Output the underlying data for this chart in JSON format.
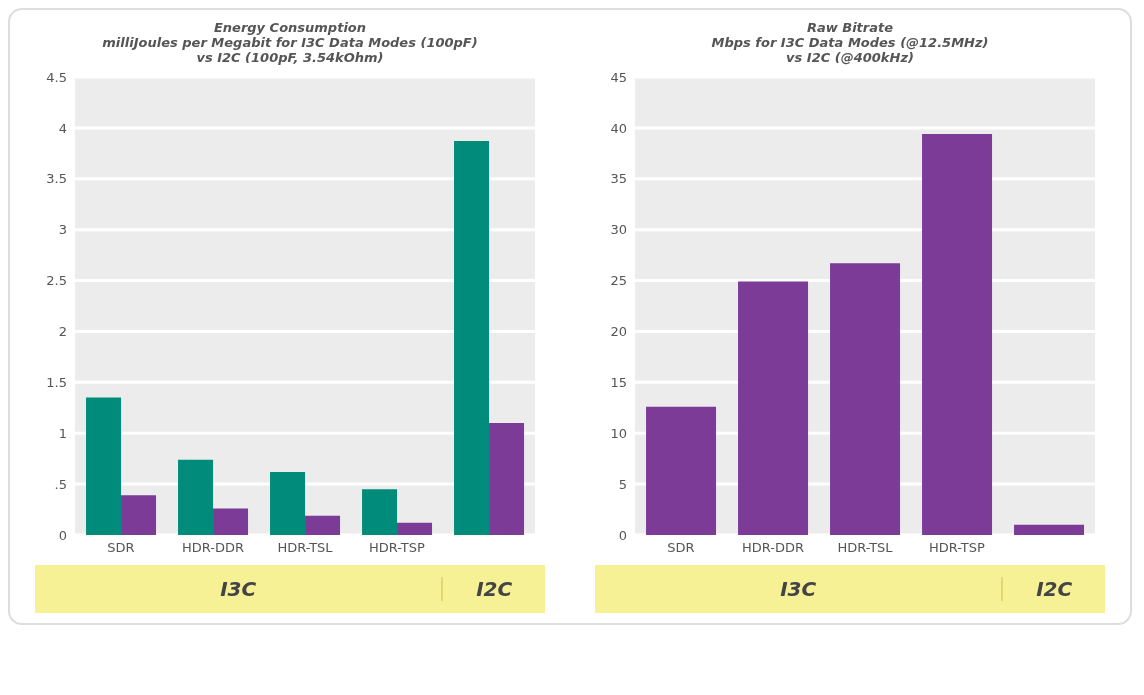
{
  "chart_data": [
    {
      "type": "bar",
      "title": "Energy Consumption",
      "subtitle": "milliJoules per Megabit for I3C Data Modes (100pF)\nvs I2C (100pF, 3.54kOhm)",
      "categories": [
        "SDR",
        "HDR-DDR",
        "HDR-TSL",
        "HDR-TSP",
        null
      ],
      "series": [
        {
          "color": "#008b7a",
          "values": [
            1.35,
            0.74,
            0.62,
            0.45,
            3.87
          ]
        },
        {
          "color": "#7b3b96",
          "values": [
            0.39,
            0.26,
            0.19,
            0.12,
            1.1
          ]
        }
      ],
      "ylim": [
        0,
        4.5
      ],
      "yticks": [
        0,
        {
          "value": 0.5,
          "label": ".5"
        },
        1,
        1.5,
        2,
        2.5,
        3,
        3.5,
        4,
        4.5
      ],
      "grid": "y",
      "annotations": [
        "I3C",
        "I2C"
      ]
    },
    {
      "type": "bar",
      "title": "Raw Bitrate",
      "subtitle": "Mbps for I3C Data Modes (@12.5MHz)\nvs I2C (@400kHz)",
      "categories": [
        "SDR",
        "HDR-DDR",
        "HDR-TSL",
        "HDR-TSP",
        null
      ],
      "series": [
        {
          "color": "#7b3b96",
          "values": [
            12.6,
            24.9,
            26.7,
            39.4,
            1.0
          ]
        }
      ],
      "ylim": [
        0,
        45
      ],
      "yticks": [
        0,
        5,
        10,
        15,
        20,
        25,
        30,
        35,
        40,
        45
      ],
      "grid": "y",
      "annotations": [
        "I3C",
        "I2C"
      ]
    }
  ]
}
